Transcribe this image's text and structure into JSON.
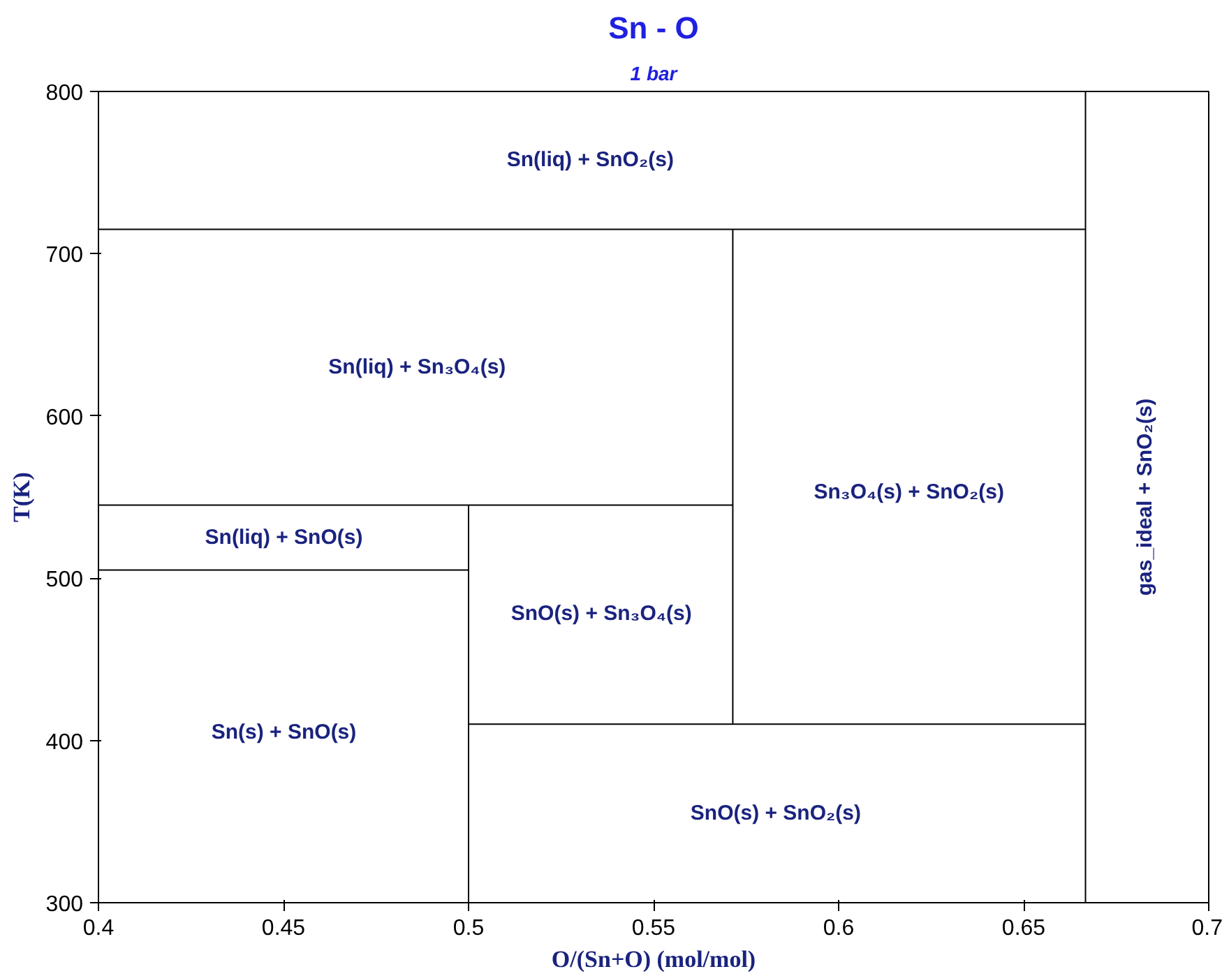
{
  "chart_data": {
    "type": "line",
    "title": "Sn - O",
    "subtitle": "1 bar",
    "xlabel": "O/(Sn+O) (mol/mol)",
    "ylabel": "T(K)",
    "xlim": [
      0.4,
      0.7
    ],
    "ylim": [
      300,
      800
    ],
    "xticks": [
      0.4,
      0.45,
      0.5,
      0.55,
      0.6,
      0.65,
      0.7
    ],
    "yticks": [
      300,
      400,
      500,
      600,
      700,
      800
    ],
    "grid": false,
    "marker": "none",
    "line_style": "solid",
    "series": [
      {
        "color": "#000000",
        "x": [
          0.4,
          0.6667
        ],
        "values": [
          715,
          715
        ]
      },
      {
        "color": "#000000",
        "x": [
          0.6667,
          0.6667
        ],
        "values": [
          300,
          800
        ]
      },
      {
        "color": "#000000",
        "x": [
          0.4,
          0.5714
        ],
        "values": [
          545,
          545
        ]
      },
      {
        "color": "#000000",
        "x": [
          0.5714,
          0.5714
        ],
        "values": [
          410,
          715
        ]
      },
      {
        "color": "#000000",
        "x": [
          0.4,
          0.5
        ],
        "values": [
          505,
          505
        ]
      },
      {
        "color": "#000000",
        "x": [
          0.5,
          0.5
        ],
        "values": [
          300,
          545
        ]
      },
      {
        "color": "#000000",
        "x": [
          0.5,
          0.6667
        ],
        "values": [
          410,
          410
        ]
      }
    ],
    "annotations": [
      "Sn(liq) + SnO₂(s)",
      "Sn(liq) + Sn₃O₄(s)",
      "Sn(liq) + SnO(s)",
      "Sn(s) + SnO(s)",
      "SnO(s) + Sn₃O₄(s)",
      "Sn₃O₄(s) + SnO₂(s)",
      "SnO(s) + SnO₂(s)",
      "gas_ideal + SnO₂(s)"
    ]
  }
}
